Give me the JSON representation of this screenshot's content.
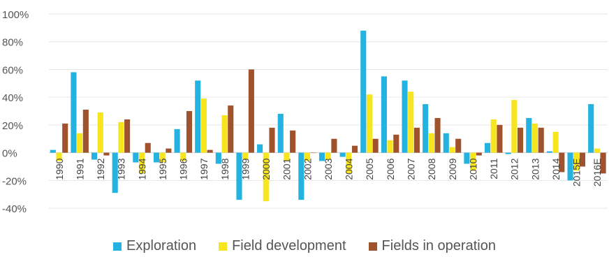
{
  "chart_data": {
    "type": "bar",
    "categories": [
      "1990",
      "1991",
      "1992",
      "1993",
      "1994",
      "1995",
      "1996",
      "1997",
      "1998",
      "1999",
      "2000",
      "2001",
      "2002",
      "2003",
      "2004",
      "2005",
      "2006",
      "2007",
      "2008",
      "2009",
      "2010",
      "2011",
      "2012",
      "2013",
      "2014",
      "2015E",
      "2016E"
    ],
    "series": [
      {
        "name": "Exploration",
        "color": "#24b2e0",
        "values": [
          2,
          58,
          -5,
          -29,
          -7,
          -7,
          17,
          52,
          -8,
          -34,
          6,
          28,
          -34,
          -6,
          -3,
          88,
          55,
          52,
          35,
          14,
          -8,
          7,
          -1,
          25,
          1,
          -20,
          35
        ]
      },
      {
        "name": "Field development",
        "color": "#f7e51e",
        "values": [
          -6,
          14,
          29,
          22,
          -15,
          -7,
          -6,
          39,
          27,
          -5,
          -35,
          -6,
          -6,
          -5,
          -15,
          42,
          9,
          44,
          14,
          4,
          -13,
          24,
          38,
          21,
          15,
          -13,
          3
        ]
      },
      {
        "name": "Fields in operation",
        "color": "#a0522d",
        "values": [
          21,
          31,
          -2,
          24,
          7,
          3,
          30,
          2,
          34,
          60,
          18,
          16,
          0,
          10,
          5,
          10,
          13,
          18,
          25,
          10,
          -2,
          20,
          18,
          18,
          -14,
          -10,
          -15
        ]
      }
    ],
    "ylim": [
      -45,
      100
    ],
    "yticks": [
      -40,
      -20,
      0,
      20,
      40,
      60,
      80,
      100
    ],
    "ytick_labels": [
      "-40%",
      "-20%",
      "0%",
      "20%",
      "40%",
      "60%",
      "80%",
      "100%"
    ],
    "grid": true,
    "legend_position": "bottom",
    "title": "",
    "xlabel": "",
    "ylabel": ""
  }
}
